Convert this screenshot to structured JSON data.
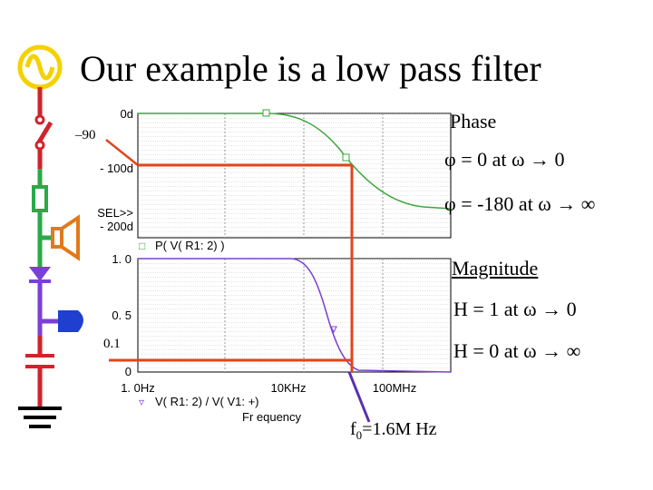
{
  "slide": {
    "title": "Our example is a low pass filter"
  },
  "annotations": {
    "minus90": "–90",
    "pt1": "0.1",
    "f0_prefix": "f",
    "f0_sub": "0",
    "f0_value": "=1.6M Hz"
  },
  "notes": {
    "phase_heading": "Phase",
    "phase_line1": "φ = 0 at ω → 0",
    "phase_line2": "φ = -180 at ω → ∞",
    "magnitude_heading": "Magnitude",
    "mag_line1": "H = 1 at ω → 0",
    "mag_line2": "H = 0 at ω → ∞"
  },
  "plot": {
    "phase_ticks": [
      "0d",
      "- 100d",
      "SEL>>",
      "- 200d"
    ],
    "phase_legend_marker": "□",
    "phase_legend": "P(   V( R1: 2) )",
    "mag_ticks": [
      "1. 0",
      "0. 5",
      "0"
    ],
    "x_ticks": [
      "1. 0Hz",
      "10KHz",
      "100MHz"
    ],
    "mag_legend_marker": "▿",
    "mag_legend": "V( R1: 2)   /   V( V1: +)",
    "x_label": "Fr equency"
  },
  "colors": {
    "phase_curve": "#3aa83a",
    "mag_curve": "#7b3fd6",
    "marker_lines": "#e0461c",
    "f0_arrow": "#5a2fb0"
  },
  "icons": [
    "ac-source-icon",
    "switch-icon",
    "resistor-icon",
    "speaker-icon",
    "diode-icon",
    "transistor-icon",
    "capacitor-icon",
    "ground-icon"
  ]
}
